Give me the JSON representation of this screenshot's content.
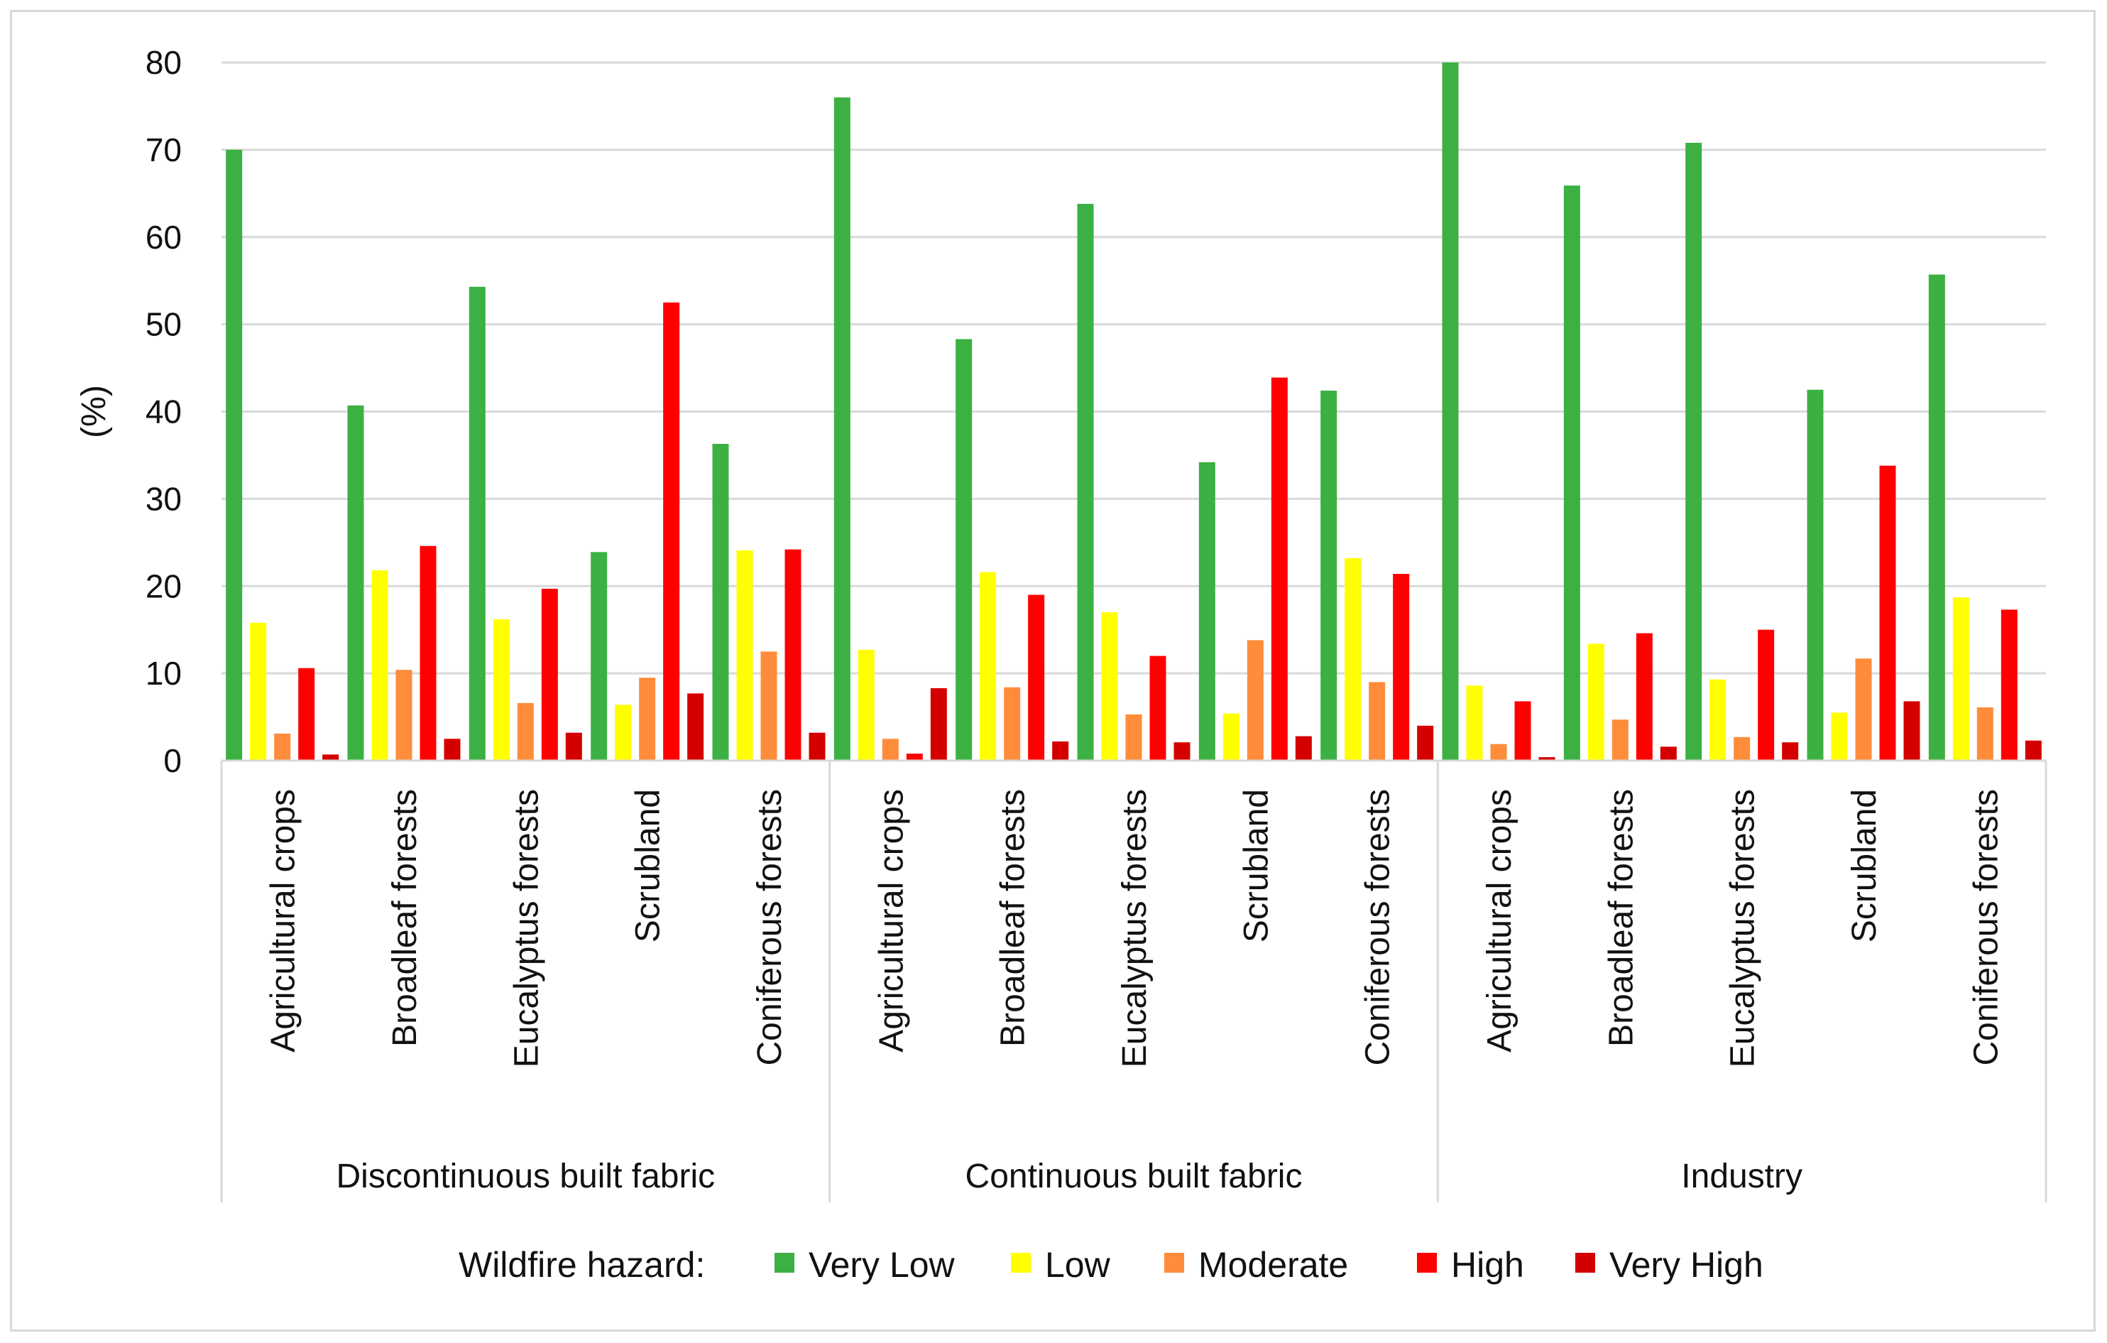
{
  "chart_data": {
    "type": "bar",
    "title": "",
    "xlabel": "",
    "ylabel": "(%)",
    "ylim": [
      0,
      80
    ],
    "yticks": [
      0,
      10,
      20,
      30,
      40,
      50,
      60,
      70,
      80
    ],
    "grid": true,
    "legend_position": "bottom",
    "legend_title": "Wildfire hazard:",
    "groups": [
      "Discontinuous built fabric",
      "Continuous built fabric",
      "Industry"
    ],
    "categories": [
      "Agricultural crops",
      "Broadleaf forests",
      "Eucalyptus forests",
      "Scrubland",
      "Coniferous forests"
    ],
    "series": [
      {
        "name": "Very Low",
        "color": "#3cb043",
        "values": [
          [
            70,
            40.7,
            54.3,
            23.9,
            36.3
          ],
          [
            76,
            48.3,
            63.8,
            34.2,
            42.4
          ],
          [
            80,
            65.9,
            70.8,
            42.5,
            55.7
          ]
        ]
      },
      {
        "name": "Low",
        "color": "#ffff00",
        "values": [
          [
            15.8,
            21.8,
            16.2,
            6.4,
            24.1
          ],
          [
            12.7,
            21.6,
            17,
            5.4,
            23.2
          ],
          [
            8.6,
            13.4,
            9.3,
            5.5,
            18.7
          ]
        ]
      },
      {
        "name": "Moderate",
        "color": "#ff8c3a",
        "values": [
          [
            3.1,
            10.4,
            6.6,
            9.5,
            12.5
          ],
          [
            2.5,
            8.4,
            5.3,
            13.8,
            9
          ],
          [
            1.9,
            4.7,
            2.7,
            11.7,
            6.1
          ]
        ]
      },
      {
        "name": "High",
        "color": "#ff0000",
        "values": [
          [
            10.6,
            24.6,
            19.7,
            52.5,
            24.2
          ],
          [
            0.8,
            19,
            12,
            43.9,
            21.4
          ],
          [
            6.8,
            14.6,
            15,
            33.8,
            17.3
          ]
        ]
      },
      {
        "name": "Very High",
        "color": "#d40000",
        "values": [
          [
            0.7,
            2.5,
            3.2,
            7.7,
            3.2
          ],
          [
            8.3,
            2.2,
            2.1,
            2.8,
            4
          ],
          [
            0.4,
            1.6,
            2.1,
            6.8,
            2.3
          ]
        ]
      }
    ]
  }
}
